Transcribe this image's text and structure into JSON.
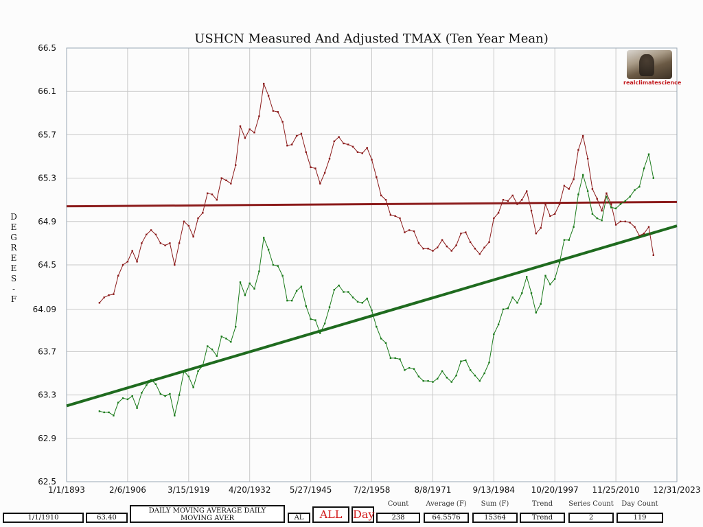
{
  "chart_data": {
    "type": "line",
    "title": "USHCN Measured And Adjusted TMAX (Ten Year Mean)",
    "ylabel": "DEGREES - F",
    "ylim": [
      62.5,
      66.5
    ],
    "xlim": [
      1893,
      2023
    ],
    "y_ticks": [
      "62.5",
      "62.9",
      "63.3",
      "63.7",
      "64.09",
      "64.5",
      "64.9",
      "65.3",
      "65.7",
      "66.1",
      "66.5"
    ],
    "x_ticks": [
      {
        "label": "1/1/1893",
        "x": 1893
      },
      {
        "label": "2/6/1906",
        "x": 1906
      },
      {
        "label": "3/15/1919",
        "x": 1919
      },
      {
        "label": "4/20/1932",
        "x": 1932
      },
      {
        "label": "5/27/1945",
        "x": 1945
      },
      {
        "label": "7/2/1958",
        "x": 1958
      },
      {
        "label": "8/8/1971",
        "x": 1971
      },
      {
        "label": "9/13/1984",
        "x": 1984
      },
      {
        "label": "10/20/1997",
        "x": 1997
      },
      {
        "label": "11/25/2010",
        "x": 2010
      },
      {
        "label": "12/31/2023",
        "x": 2023
      }
    ],
    "grid": true,
    "start_year": 1900,
    "series": [
      {
        "color": "#8b1a1a",
        "values": [
          64.15,
          64.2,
          64.22,
          64.23,
          64.4,
          64.5,
          64.53,
          64.63,
          64.53,
          64.7,
          64.78,
          64.82,
          64.78,
          64.7,
          64.68,
          64.7,
          64.5,
          64.7,
          64.9,
          64.86,
          64.76,
          64.93,
          64.98,
          65.16,
          65.15,
          65.1,
          65.3,
          65.28,
          65.25,
          65.42,
          65.78,
          65.67,
          65.75,
          65.72,
          65.87,
          66.17,
          66.06,
          65.92,
          65.91,
          65.82,
          65.6,
          65.61,
          65.69,
          65.71,
          65.54,
          65.4,
          65.39,
          65.25,
          65.35,
          65.48,
          65.64,
          65.68,
          65.62,
          65.61,
          65.59,
          65.54,
          65.53,
          65.58,
          65.47,
          65.31,
          65.14,
          65.1,
          64.96,
          64.95,
          64.93,
          64.8,
          64.82,
          64.81,
          64.7,
          64.65,
          64.65,
          64.63,
          64.66,
          64.73,
          64.67,
          64.63,
          64.68,
          64.79,
          64.8,
          64.71,
          64.65,
          64.6,
          64.66,
          64.71,
          64.93,
          64.98,
          65.1,
          65.09,
          65.14,
          65.06,
          65.1,
          65.18,
          65.0,
          64.79,
          64.84,
          65.06,
          64.95,
          64.97,
          65.06,
          65.23,
          65.2,
          65.29,
          65.56,
          65.69,
          65.48,
          65.2,
          65.11,
          65.0,
          65.16,
          65.06,
          64.87,
          64.9,
          64.9,
          64.89,
          64.85,
          64.77,
          64.79,
          64.85,
          64.59
        ]
      },
      {
        "color": "#1a7a1a",
        "values": [
          63.15,
          63.14,
          63.14,
          63.11,
          63.23,
          63.27,
          63.26,
          63.29,
          63.18,
          63.32,
          63.39,
          63.44,
          63.4,
          63.31,
          63.29,
          63.31,
          63.11,
          63.3,
          63.52,
          63.47,
          63.37,
          63.52,
          63.57,
          63.75,
          63.72,
          63.66,
          63.84,
          63.82,
          63.79,
          63.93,
          64.34,
          64.22,
          64.33,
          64.28,
          64.44,
          64.75,
          64.64,
          64.5,
          64.49,
          64.4,
          64.17,
          64.17,
          64.26,
          64.3,
          64.12,
          64.0,
          63.99,
          63.87,
          63.96,
          64.11,
          64.27,
          64.31,
          64.25,
          64.25,
          64.2,
          64.16,
          64.15,
          64.19,
          64.08,
          63.93,
          63.82,
          63.78,
          63.64,
          63.64,
          63.63,
          63.53,
          63.55,
          63.54,
          63.47,
          63.43,
          63.43,
          63.42,
          63.45,
          63.52,
          63.46,
          63.42,
          63.48,
          63.61,
          63.62,
          63.53,
          63.48,
          63.43,
          63.5,
          63.6,
          63.86,
          63.95,
          64.09,
          64.1,
          64.2,
          64.15,
          64.24,
          64.39,
          64.24,
          64.06,
          64.14,
          64.4,
          64.32,
          64.37,
          64.52,
          64.73,
          64.73,
          64.85,
          65.15,
          65.33,
          65.18,
          64.97,
          64.93,
          64.91,
          65.13,
          65.03,
          65.02,
          65.06,
          65.09,
          65.13,
          65.19,
          65.22,
          65.39,
          65.52,
          65.3
        ]
      }
    ],
    "trend_lines": [
      {
        "color": "#8b1a1a",
        "x": [
          1893,
          2023
        ],
        "y": [
          65.04,
          65.08
        ]
      },
      {
        "color": "#1f6b1f",
        "x": [
          1893,
          2023
        ],
        "y": [
          63.2,
          64.86
        ]
      }
    ]
  },
  "statusbar": {
    "date": "1/1/1910",
    "value": "63.40",
    "mode": "DAILY MOVING AVERAGE DAILY MOVING AVER",
    "state": "AL",
    "all": "ALL",
    "day": "Day",
    "count_label": "Count",
    "count": "238",
    "avg_label": "Average (F)",
    "avg": "64.5576",
    "sum_label": "Sum (F)",
    "sum": "15364",
    "trend_label": "Trend",
    "trend": "Trend",
    "series_label": "Series Count",
    "series": "2",
    "daycount_label": "Day Count",
    "daycount": "119"
  },
  "logo_text": "realclimatescience",
  "logo_icon": "dog-photo"
}
